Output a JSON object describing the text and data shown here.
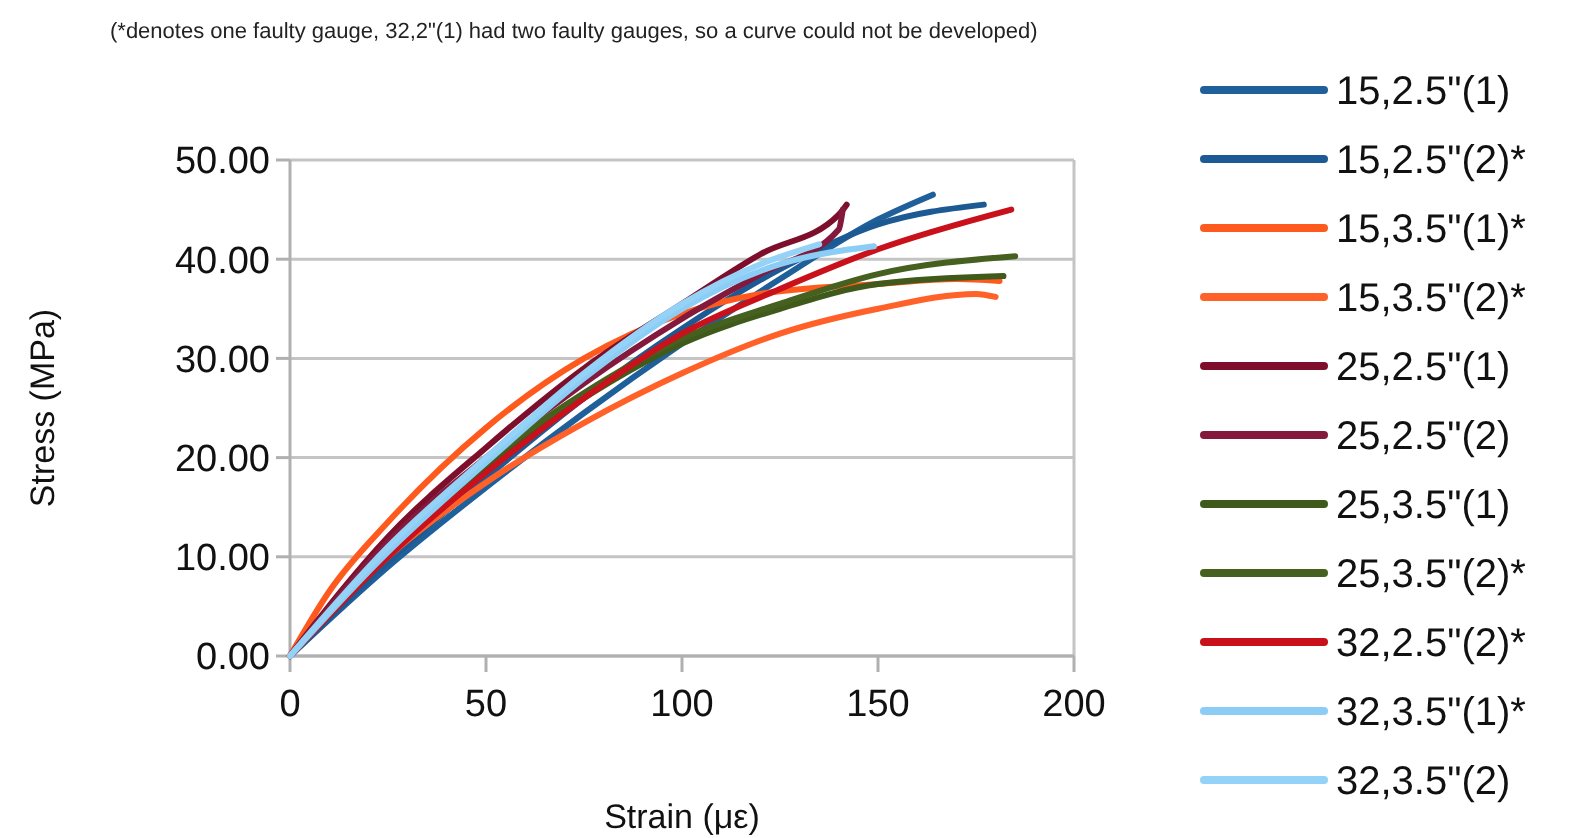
{
  "chart_data": {
    "type": "line",
    "xlabel": "Strain (με)",
    "ylabel": "Stress (MPa)",
    "annotations": [
      "(*denotes one faulty gauge, 32,2\"(1) had two faulty gauges, so a curve could not be developed)"
    ],
    "xlim": [
      0,
      200
    ],
    "xticks": [
      0,
      50,
      100,
      150,
      200
    ],
    "ylim": [
      0,
      50
    ],
    "yticks": [
      {
        "value": 0,
        "label": "0.00"
      },
      {
        "value": 10,
        "label": "10.00"
      },
      {
        "value": 20,
        "label": "20.00"
      },
      {
        "value": 30,
        "label": "30.00"
      },
      {
        "value": 40,
        "label": "40.00"
      },
      {
        "value": 50,
        "label": "50.00"
      }
    ],
    "grid": "y",
    "legend": "right",
    "marker": "none",
    "line_style": "solid",
    "series": [
      {
        "name": "15,2.5\"(1)",
        "color": "#1f5f9a",
        "x": [
          0,
          25,
          50,
          75,
          100,
          125,
          150,
          164
        ],
        "values": [
          0,
          9,
          17,
          24.5,
          31.5,
          38,
          44,
          46.5
        ]
      },
      {
        "name": "15,2.5\"(2)*",
        "color": "#1d5a93",
        "x": [
          0,
          25,
          50,
          75,
          100,
          125,
          150,
          177
        ],
        "values": [
          0,
          9.5,
          18,
          26,
          33,
          39,
          43.5,
          45.5
        ]
      },
      {
        "name": "15,3.5\"(1)*",
        "color": "#ff5a1e",
        "x": [
          0,
          10,
          25,
          50,
          75,
          100,
          120,
          150,
          170,
          181
        ],
        "values": [
          0,
          6.5,
          13.5,
          23,
          30,
          34.5,
          36.5,
          37.5,
          38,
          37.8
        ]
      },
      {
        "name": "15,3.5\"(2)*",
        "color": "#ff6128",
        "x": [
          0,
          25,
          50,
          75,
          100,
          125,
          150,
          175,
          180
        ],
        "values": [
          0,
          10,
          17.5,
          23.5,
          28.5,
          32.5,
          35,
          36.5,
          36.2
        ]
      },
      {
        "name": "25,2.5\"(1)",
        "color": "#7e0f2c",
        "x": [
          0,
          25,
          50,
          75,
          100,
          120,
          140,
          142
        ],
        "values": [
          0,
          12,
          21,
          29,
          35.5,
          40.5,
          44.5,
          45.5
        ]
      },
      {
        "name": "25,2.5\"(2)",
        "color": "#831a3e",
        "x": [
          0,
          25,
          50,
          75,
          100,
          120,
          140,
          141
        ],
        "values": [
          0,
          11.5,
          20,
          27.5,
          34,
          38.5,
          43,
          45
        ]
      },
      {
        "name": "25,3.5\"(1)",
        "color": "#3f5a1a",
        "x": [
          0,
          25,
          50,
          75,
          100,
          125,
          150,
          182
        ],
        "values": [
          0,
          10.5,
          19,
          26,
          31.5,
          35,
          37.5,
          38.3
        ]
      },
      {
        "name": "25,3.5\"(2)*",
        "color": "#46601f",
        "x": [
          0,
          25,
          50,
          75,
          100,
          125,
          150,
          185
        ],
        "values": [
          0,
          10.5,
          19.5,
          26.5,
          32,
          35.5,
          38.5,
          40.3
        ]
      },
      {
        "name": "32,2.5\"(2)*",
        "color": "#c8111b",
        "x": [
          0,
          25,
          50,
          75,
          100,
          125,
          150,
          184
        ],
        "values": [
          0,
          10,
          18.5,
          26,
          32.5,
          37,
          41,
          45
        ]
      },
      {
        "name": "32,3.5\"(1)*",
        "color": "#8ccdf5",
        "x": [
          0,
          25,
          50,
          75,
          100,
          125,
          149
        ],
        "values": [
          0,
          10.5,
          19.5,
          28,
          35,
          39.5,
          41.3
        ]
      },
      {
        "name": "32,3.5\"(2)",
        "color": "#94d2f7",
        "x": [
          0,
          25,
          50,
          75,
          100,
          120,
          135
        ],
        "values": [
          0,
          11,
          20,
          28.5,
          35.5,
          39.5,
          41.5
        ]
      }
    ]
  }
}
